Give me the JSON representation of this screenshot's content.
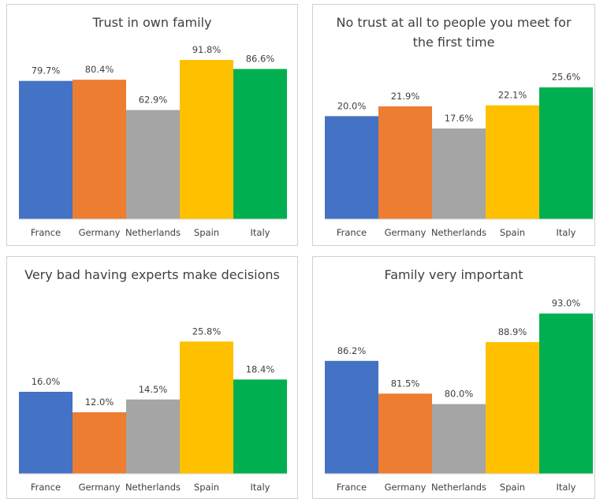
{
  "chart_data": [
    {
      "type": "bar",
      "title": "Trust in own family",
      "categories": [
        "France",
        "Germany",
        "Netherlands",
        "Spain",
        "Italy"
      ],
      "values": [
        79.7,
        80.4,
        62.9,
        91.8,
        86.6
      ],
      "value_labels": [
        "79.7%",
        "80.4%",
        "62.9%",
        "91.8%",
        "86.6%"
      ],
      "colors": [
        "#4472c4",
        "#ed7d31",
        "#a5a5a5",
        "#ffc000",
        "#00b050"
      ],
      "ylim": [
        0,
        100
      ]
    },
    {
      "type": "bar",
      "title": "No trust at all to people you meet for the first time",
      "categories": [
        "France",
        "Germany",
        "Netherlands",
        "Spain",
        "Italy"
      ],
      "values": [
        20.0,
        21.9,
        17.6,
        22.1,
        25.6
      ],
      "value_labels": [
        "20.0%",
        "21.9%",
        "17.6%",
        "22.1%",
        "25.6%"
      ],
      "colors": [
        "#4472c4",
        "#ed7d31",
        "#a5a5a5",
        "#ffc000",
        "#00b050"
      ],
      "ylim": [
        0,
        30
      ]
    },
    {
      "type": "bar",
      "title": "Very bad having experts make decisions",
      "categories": [
        "France",
        "Germany",
        "Netherlands",
        "Spain",
        "Italy"
      ],
      "values": [
        16.0,
        12.0,
        14.5,
        25.8,
        18.4
      ],
      "value_labels": [
        "16.0%",
        "12.0%",
        "14.5%",
        "25.8%",
        "18.4%"
      ],
      "colors": [
        "#4472c4",
        "#ed7d31",
        "#a5a5a5",
        "#ffc000",
        "#00b050"
      ],
      "ylim": [
        0,
        30
      ]
    },
    {
      "type": "bar",
      "title": "Family very important",
      "categories": [
        "France",
        "Germany",
        "Netherlands",
        "Spain",
        "Italy"
      ],
      "values": [
        86.2,
        81.5,
        80.0,
        88.9,
        93.0
      ],
      "value_labels": [
        "86.2%",
        "81.5%",
        "80.0%",
        "88.9%",
        "93.0%"
      ],
      "colors": [
        "#4472c4",
        "#ed7d31",
        "#a5a5a5",
        "#ffc000",
        "#00b050"
      ],
      "ylim": [
        70,
        95
      ]
    }
  ]
}
